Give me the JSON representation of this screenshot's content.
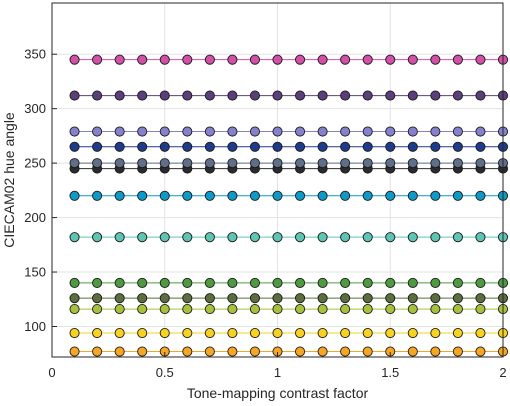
{
  "chart_data": {
    "type": "scatter",
    "title": "",
    "xlabel": "Tone-mapping contrast factor",
    "ylabel": "CIECAM02 hue angle",
    "xlim": [
      0,
      2
    ],
    "ylim": [
      72,
      397
    ],
    "xticks": [
      0,
      0.5,
      1,
      1.5,
      2
    ],
    "xtick_labels": [
      "0",
      "0.5",
      "1",
      "1.5",
      "2"
    ],
    "yticks": [
      100,
      150,
      200,
      250,
      300,
      350
    ],
    "ytick_labels": [
      "100",
      "150",
      "200",
      "250",
      "300",
      "350"
    ],
    "grid": true,
    "legend": "none",
    "x": [
      0.1,
      0.2,
      0.3,
      0.4,
      0.5,
      0.6,
      0.7,
      0.8,
      0.9,
      1.0,
      1.1,
      1.2,
      1.3,
      1.4,
      1.5,
      1.6,
      1.7,
      1.8,
      1.9,
      2.0
    ],
    "series": [
      {
        "value": 77,
        "color": "#f5a623"
      },
      {
        "value": 94,
        "color": "#f7d21e"
      },
      {
        "value": 116,
        "color": "#a6c23a"
      },
      {
        "value": 126,
        "color": "#5b6e3d"
      },
      {
        "value": 140,
        "color": "#4e9a3e"
      },
      {
        "value": 182,
        "color": "#5cc5b4"
      },
      {
        "value": 220,
        "color": "#0e9ac6"
      },
      {
        "value": 245,
        "color": "#2b2b2b"
      },
      {
        "value": 250,
        "color": "#5f6f8a"
      },
      {
        "value": 265,
        "color": "#1f3c8c"
      },
      {
        "value": 279,
        "color": "#8681cc"
      },
      {
        "value": 312,
        "color": "#5a3f7a"
      },
      {
        "value": 345,
        "color": "#d250a8"
      }
    ]
  }
}
